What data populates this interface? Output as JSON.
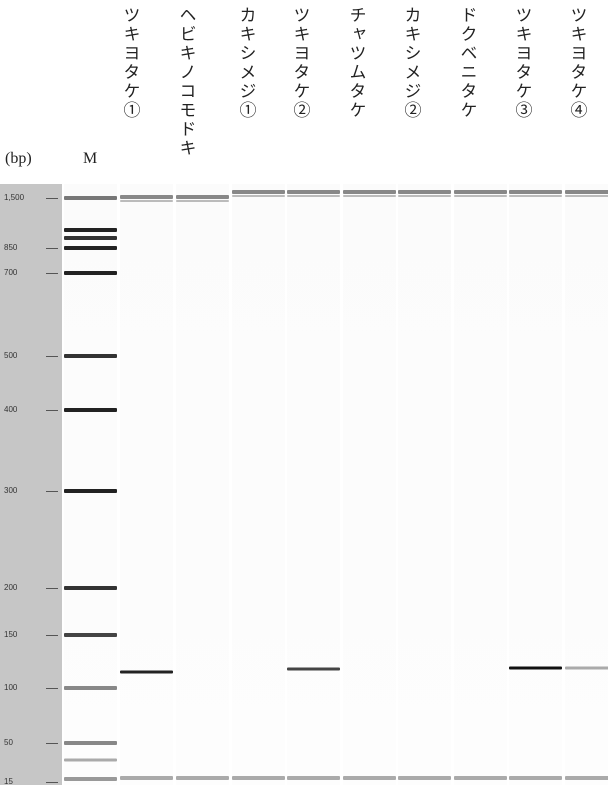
{
  "unit_label": "(bp)",
  "ladder_label": "M",
  "lanes": [
    "ツキヨタケ①",
    "ヘビキノコモドキ",
    "カキシメジ①",
    "ツキヨタケ②",
    "チャツムタケ",
    "カキシメジ②",
    "ドクベニタケ",
    "ツキヨタケ③",
    "ツキヨタケ④"
  ],
  "size_labels": [
    "1,500",
    "850",
    "700",
    "500",
    "400",
    "300",
    "200",
    "150",
    "100",
    "50",
    "15"
  ]
}
